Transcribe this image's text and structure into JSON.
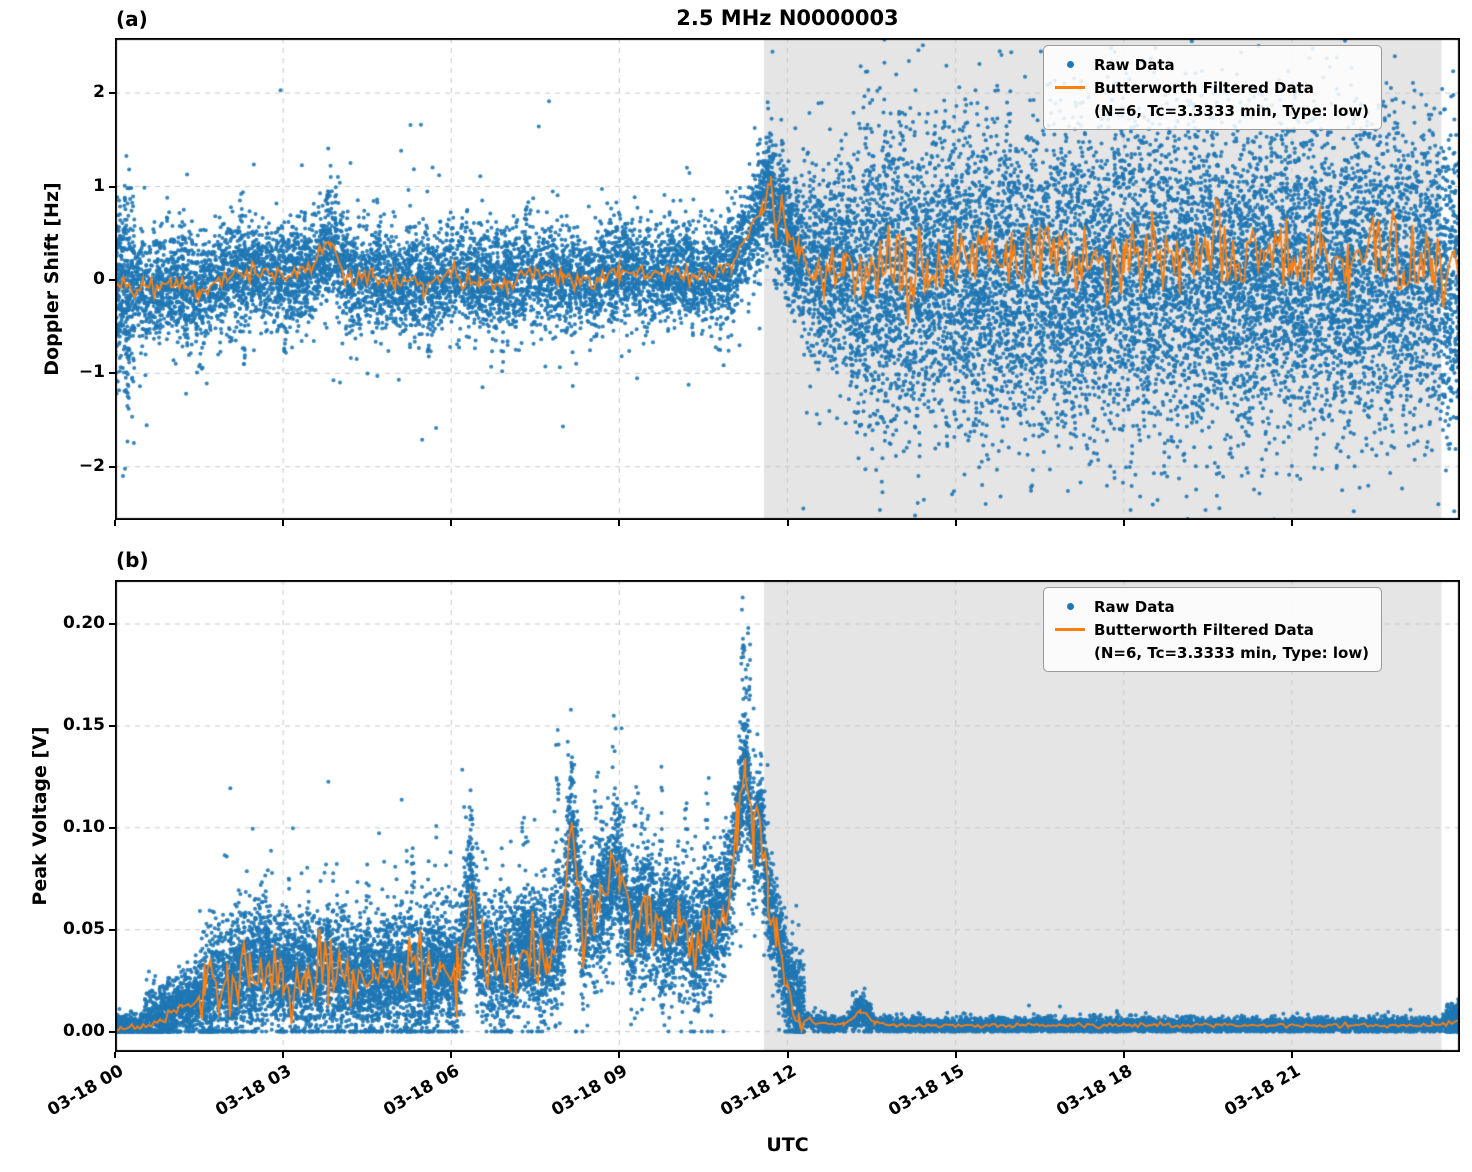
{
  "figure": {
    "title": "2.5 MHz N0000003",
    "xlabel": "UTC",
    "legend": {
      "raw_label": "Raw Data",
      "filtered_label": "Butterworth Filtered Data",
      "filtered_sublabel": "(N=6, Tc=3.3333 min, Type: low)"
    },
    "colors": {
      "raw": "#1f77b4",
      "filtered": "#ff7f0e",
      "shade": "#e5e5e5",
      "grid": "#c9c9c9",
      "spine": "#000000"
    }
  },
  "chart_data": [
    {
      "id": "a",
      "panel_label": "(a)",
      "type": "scatter+line",
      "ylabel": "Doppler Shift [Hz]",
      "ylim": [
        -2.57,
        2.59
      ],
      "yticks": [
        -2,
        -1,
        0,
        1,
        2
      ],
      "ytick_labels": [
        "−2",
        "−1",
        "0",
        "1",
        "2"
      ],
      "xlim_hours": [
        0,
        24
      ],
      "xticks_hours": [
        0,
        3,
        6,
        9,
        12,
        15,
        18,
        21
      ],
      "xtick_labels": [],
      "shade_hours": [
        11.58,
        23.67
      ],
      "grid": true,
      "legend_position": "upper right",
      "series": [
        {
          "name": "Raw Data",
          "kind": "scatter"
        },
        {
          "name": "Butterworth Filtered Data (N=6, Tc=3.3333 min, Type: low)",
          "kind": "line"
        }
      ],
      "filtered_anchors": [
        [
          0,
          -0.05
        ],
        [
          0.5,
          -0.1
        ],
        [
          1,
          -0.03
        ],
        [
          1.5,
          -0.15
        ],
        [
          2,
          0.02
        ],
        [
          2.5,
          0.1
        ],
        [
          3,
          0.03
        ],
        [
          3.5,
          0.12
        ],
        [
          3.85,
          0.38
        ],
        [
          4.2,
          0.0
        ],
        [
          4.6,
          0.05
        ],
        [
          5,
          -0.02
        ],
        [
          5.5,
          -0.05
        ],
        [
          6,
          0.06
        ],
        [
          6.5,
          0.0
        ],
        [
          7,
          -0.05
        ],
        [
          7.5,
          0.1
        ],
        [
          8,
          0.04
        ],
        [
          8.5,
          -0.04
        ],
        [
          9,
          0.1
        ],
        [
          9.5,
          0.04
        ],
        [
          10,
          0.1
        ],
        [
          10.5,
          0.02
        ],
        [
          11,
          0.15
        ],
        [
          11.3,
          0.5
        ],
        [
          11.55,
          0.8
        ],
        [
          11.7,
          1.05
        ],
        [
          11.8,
          0.55
        ],
        [
          11.9,
          0.85
        ],
        [
          12.0,
          0.45
        ],
        [
          12.2,
          0.3
        ],
        [
          12.5,
          0.12
        ],
        [
          13,
          0.1
        ],
        [
          13.5,
          0.06
        ],
        [
          14,
          0.1
        ],
        [
          14.5,
          0.08
        ],
        [
          15,
          0.18
        ],
        [
          15.5,
          0.3
        ],
        [
          16,
          0.22
        ],
        [
          16.5,
          0.32
        ],
        [
          17,
          0.2
        ],
        [
          17.5,
          0.3
        ],
        [
          18,
          0.24
        ],
        [
          18.5,
          0.3
        ],
        [
          19,
          0.2
        ],
        [
          19.5,
          0.32
        ],
        [
          20,
          0.24
        ],
        [
          20.5,
          0.28
        ],
        [
          21,
          0.2
        ],
        [
          21.5,
          0.28
        ],
        [
          22,
          0.16
        ],
        [
          22.5,
          0.24
        ],
        [
          23,
          0.12
        ],
        [
          23.5,
          0.2
        ],
        [
          24,
          0.05
        ]
      ],
      "line_noise": [
        [
          0,
          11.2,
          0.05
        ],
        [
          11.2,
          12.6,
          0.07
        ],
        [
          12.6,
          24,
          0.22
        ]
      ],
      "scatter_segments": [
        {
          "h0": 0,
          "h1": 0.35,
          "n": 350,
          "spread": 0.45,
          "tail": 0.7,
          "tail_frac": 0.12
        },
        {
          "h0": 0.35,
          "h1": 11.45,
          "n": 7000,
          "spread": 0.27,
          "tail": 0.55,
          "tail_frac": 0.05
        },
        {
          "h0": 11.45,
          "h1": 12.25,
          "n": 800,
          "spread": 0.3,
          "tail": 0.5,
          "tail_frac": 0.06
        },
        {
          "h0": 12.25,
          "h1": 13.1,
          "n": 700,
          "spread": 0.5,
          "tail": 0.8,
          "tail_frac": 0.08
        },
        {
          "h0": 13.1,
          "h1": 24,
          "n": 10500,
          "spread": 0.82,
          "tail": 0.6,
          "tail_frac": 0.08,
          "center": 0.05
        }
      ],
      "spikes": [
        {
          "h": 0.18,
          "v": 0.85
        },
        {
          "h": 0.22,
          "v": -1.35
        },
        {
          "h": 1.2,
          "v": 0.62
        },
        {
          "h": 1.55,
          "v": -0.95
        },
        {
          "h": 2.25,
          "v": 0.92
        },
        {
          "h": 2.3,
          "v": -0.9
        },
        {
          "h": 3.05,
          "v": -0.78
        },
        {
          "h": 3.8,
          "v": 0.95
        },
        {
          "h": 4.7,
          "v": 0.58
        },
        {
          "h": 5.6,
          "v": -0.82
        },
        {
          "h": 6.8,
          "v": 0.62
        },
        {
          "h": 7.35,
          "v": 0.78
        },
        {
          "h": 9.1,
          "v": 0.6
        },
        {
          "h": 10.2,
          "v": 0.55
        },
        {
          "h": 10.8,
          "v": -0.75
        }
      ]
    },
    {
      "id": "b",
      "panel_label": "(b)",
      "type": "scatter+line",
      "ylabel": "Peak Voltage [V]",
      "ylim": [
        -0.01,
        0.2216
      ],
      "yticks": [
        0.0,
        0.05,
        0.1,
        0.15,
        0.2
      ],
      "ytick_labels": [
        "0.00",
        "0.05",
        "0.10",
        "0.15",
        "0.20"
      ],
      "xlim_hours": [
        0,
        24
      ],
      "xticks_hours": [
        0,
        3,
        6,
        9,
        12,
        15,
        18,
        21
      ],
      "xtick_labels": [
        "03-18 00",
        "03-18 03",
        "03-18 06",
        "03-18 09",
        "03-18 12",
        "03-18 15",
        "03-18 18",
        "03-18 21"
      ],
      "shade_hours": [
        11.58,
        23.67
      ],
      "grid": true,
      "legend_position": "upper right",
      "series": [
        {
          "name": "Raw Data",
          "kind": "scatter"
        },
        {
          "name": "Butterworth Filtered Data (N=6, Tc=3.3333 min, Type: low)",
          "kind": "line"
        }
      ],
      "filtered_anchors": [
        [
          0,
          0.002
        ],
        [
          0.4,
          0.002
        ],
        [
          0.8,
          0.005
        ],
        [
          1.2,
          0.012
        ],
        [
          1.6,
          0.018
        ],
        [
          2,
          0.024
        ],
        [
          2.4,
          0.03
        ],
        [
          2.7,
          0.035
        ],
        [
          3,
          0.028
        ],
        [
          3.4,
          0.026
        ],
        [
          3.8,
          0.031
        ],
        [
          4.2,
          0.026
        ],
        [
          4.6,
          0.024
        ],
        [
          5,
          0.03
        ],
        [
          5.4,
          0.027
        ],
        [
          5.8,
          0.033
        ],
        [
          6.1,
          0.028
        ],
        [
          6.35,
          0.07
        ],
        [
          6.55,
          0.035
        ],
        [
          7,
          0.031
        ],
        [
          7.35,
          0.042
        ],
        [
          7.7,
          0.036
        ],
        [
          8.0,
          0.05
        ],
        [
          8.15,
          0.105
        ],
        [
          8.35,
          0.05
        ],
        [
          8.65,
          0.062
        ],
        [
          9.0,
          0.08
        ],
        [
          9.2,
          0.047
        ],
        [
          9.5,
          0.062
        ],
        [
          9.8,
          0.046
        ],
        [
          10.05,
          0.056
        ],
        [
          10.3,
          0.042
        ],
        [
          10.6,
          0.052
        ],
        [
          10.9,
          0.06
        ],
        [
          11.1,
          0.1
        ],
        [
          11.25,
          0.13
        ],
        [
          11.4,
          0.09
        ],
        [
          11.52,
          0.105
        ],
        [
          11.65,
          0.062
        ],
        [
          11.8,
          0.05
        ],
        [
          12.0,
          0.022
        ],
        [
          12.2,
          0.009
        ],
        [
          12.5,
          0.004
        ],
        [
          13.0,
          0.003
        ],
        [
          13.3,
          0.01
        ],
        [
          13.55,
          0.004
        ],
        [
          14,
          0.003
        ],
        [
          16,
          0.003
        ],
        [
          18,
          0.003
        ],
        [
          20,
          0.003
        ],
        [
          22,
          0.003
        ],
        [
          23.5,
          0.003
        ],
        [
          24,
          0.005
        ]
      ],
      "line_noise": [
        [
          0,
          1.5,
          0.001
        ],
        [
          1.5,
          11.6,
          0.009
        ],
        [
          11.6,
          12.3,
          0.004
        ],
        [
          12.3,
          24,
          0.0006
        ]
      ],
      "scatter_segments": [
        {
          "h0": 0,
          "h1": 0.5,
          "n": 350,
          "spread": 0.003,
          "tail": 0.004,
          "tail_frac": 0.05
        },
        {
          "h0": 0.5,
          "h1": 1.5,
          "n": 900,
          "spread": 0.008,
          "tail": 0.01,
          "tail_frac": 0.06
        },
        {
          "h0": 1.5,
          "h1": 11.55,
          "n": 10000,
          "spread": 0.015,
          "tail": 0.028,
          "tail_frac": 0.07
        },
        {
          "h0": 11.55,
          "h1": 12.3,
          "n": 800,
          "spread": 0.013,
          "tail": 0.02,
          "tail_frac": 0.05
        },
        {
          "h0": 12.3,
          "h1": 24,
          "n": 5500,
          "spread": 0.0018,
          "tail": 0.003,
          "tail_frac": 0.03
        },
        {
          "h0": 13.15,
          "h1": 13.5,
          "n": 250,
          "spread": 0.004,
          "tail": 0.004,
          "tail_frac": 0.1
        },
        {
          "h0": 23.75,
          "h1": 24,
          "n": 300,
          "spread": 0.004,
          "tail": 0.004,
          "tail_frac": 0.05
        }
      ],
      "spikes": [
        {
          "h": 2.6,
          "v": 0.072
        },
        {
          "h": 3.1,
          "v": 0.075
        },
        {
          "h": 4.5,
          "v": 0.082
        },
        {
          "h": 5.3,
          "v": 0.086
        },
        {
          "h": 6.35,
          "v": 0.106
        },
        {
          "h": 6.9,
          "v": 0.09
        },
        {
          "h": 7.3,
          "v": 0.105
        },
        {
          "h": 7.9,
          "v": 0.148
        },
        {
          "h": 8.15,
          "v": 0.13
        },
        {
          "h": 8.6,
          "v": 0.125
        },
        {
          "h": 8.9,
          "v": 0.155
        },
        {
          "h": 9.3,
          "v": 0.12
        },
        {
          "h": 9.75,
          "v": 0.13
        },
        {
          "h": 10.2,
          "v": 0.112
        },
        {
          "h": 10.55,
          "v": 0.117
        },
        {
          "h": 10.9,
          "v": 0.105
        },
        {
          "h": 11.2,
          "v": 0.213
        },
        {
          "h": 11.3,
          "v": 0.198
        },
        {
          "h": 11.55,
          "v": 0.106
        }
      ]
    }
  ]
}
